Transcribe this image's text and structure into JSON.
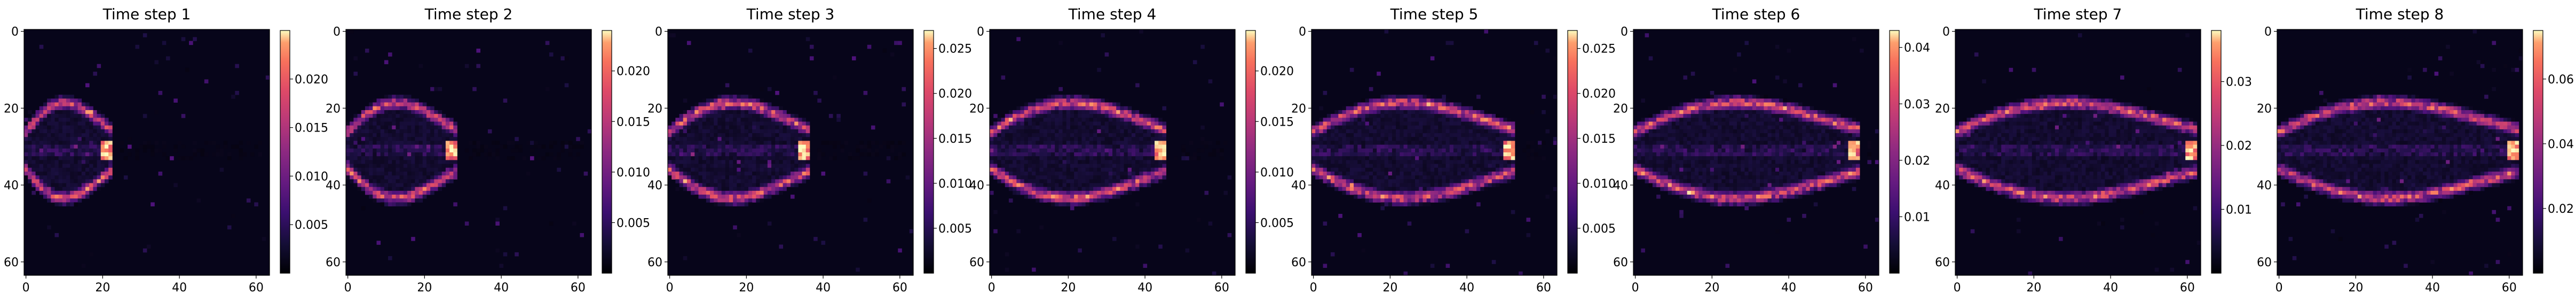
{
  "chart_data": {
    "type": "heatmap",
    "colormap": "magma",
    "grid": "off",
    "grid_size": [
      64,
      64
    ],
    "panels": [
      {
        "title": "Time step 1",
        "x_ticks": [
          "0",
          "20",
          "40",
          "60"
        ],
        "y_ticks": [
          "0",
          "20",
          "40",
          "60"
        ],
        "vmin": 0,
        "vmax": 0.025,
        "colorbar_ticks": [
          "0.005",
          "0.010",
          "0.015",
          "0.020"
        ]
      },
      {
        "title": "Time step 2",
        "x_ticks": [
          "0",
          "20",
          "40",
          "60"
        ],
        "y_ticks": [
          "0",
          "20",
          "40",
          "60"
        ],
        "vmin": 0,
        "vmax": 0.024,
        "colorbar_ticks": [
          "0.005",
          "0.010",
          "0.015",
          "0.020"
        ]
      },
      {
        "title": "Time step 3",
        "x_ticks": [
          "0",
          "20",
          "40",
          "60"
        ],
        "y_ticks": [
          "0",
          "20",
          "40",
          "60"
        ],
        "vmin": 0,
        "vmax": 0.027,
        "colorbar_ticks": [
          "0.005",
          "0.010",
          "0.015",
          "0.020",
          "0.025"
        ]
      },
      {
        "title": "Time step 4",
        "x_ticks": [
          "0",
          "20",
          "40",
          "60"
        ],
        "y_ticks": [
          "0",
          "20",
          "40",
          "60"
        ],
        "vmin": 0,
        "vmax": 0.024,
        "colorbar_ticks": [
          "0.005",
          "0.010",
          "0.015",
          "0.020"
        ]
      },
      {
        "title": "Time step 5",
        "x_ticks": [
          "0",
          "20",
          "40",
          "60"
        ],
        "y_ticks": [
          "0",
          "20",
          "40",
          "60"
        ],
        "vmin": 0,
        "vmax": 0.027,
        "colorbar_ticks": [
          "0.005",
          "0.010",
          "0.015",
          "0.020",
          "0.025"
        ]
      },
      {
        "title": "Time step 6",
        "x_ticks": [
          "0",
          "20",
          "40",
          "60"
        ],
        "y_ticks": [
          "0",
          "20",
          "40",
          "60"
        ],
        "vmin": 0,
        "vmax": 0.043,
        "colorbar_ticks": [
          "0.01",
          "0.02",
          "0.03",
          "0.04"
        ]
      },
      {
        "title": "Time step 7",
        "x_ticks": [
          "0",
          "20",
          "40",
          "60"
        ],
        "y_ticks": [
          "0",
          "20",
          "40",
          "60"
        ],
        "vmin": 0,
        "vmax": 0.038,
        "colorbar_ticks": [
          "0.01",
          "0.02",
          "0.03"
        ]
      },
      {
        "title": "Time step 8",
        "x_ticks": [
          "0",
          "20",
          "40",
          "60"
        ],
        "y_ticks": [
          "0",
          "20",
          "40",
          "60"
        ],
        "vmin": 0,
        "vmax": 0.075,
        "colorbar_ticks": [
          "0.02",
          "0.04",
          "0.06"
        ]
      }
    ],
    "description_fields": {
      "front_extent_x": [
        22,
        28,
        36,
        45,
        52,
        58,
        62,
        62
      ],
      "blob_center_y": 31
    }
  }
}
